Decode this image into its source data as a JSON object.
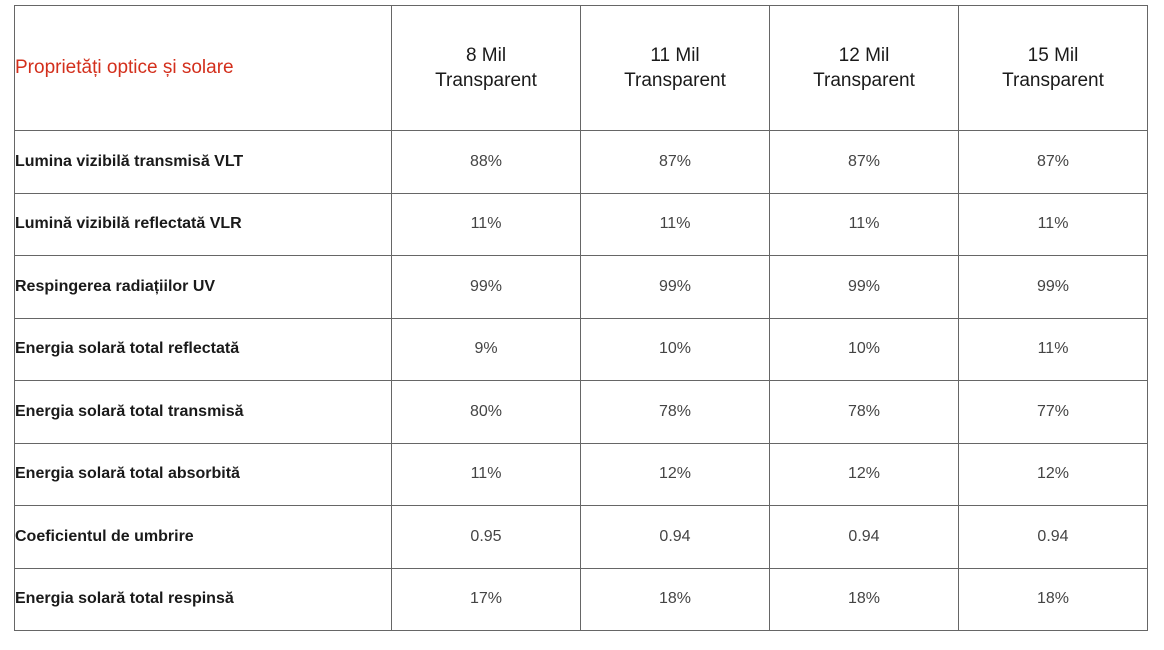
{
  "table": {
    "title": "Proprietăți optice și solare",
    "columns": [
      {
        "line1": "8 Mil",
        "line2": "Transparent"
      },
      {
        "line1": "11 Mil",
        "line2": "Transparent"
      },
      {
        "line1": "12 Mil",
        "line2": "Transparent"
      },
      {
        "line1": "15 Mil",
        "line2": "Transparent"
      }
    ],
    "rows": [
      {
        "label": "Lumina vizibilă transmisă VLT",
        "values": [
          "88%",
          "87%",
          "87%",
          "87%"
        ]
      },
      {
        "label": "Lumină vizibilă reflectată VLR",
        "values": [
          "11%",
          "11%",
          "11%",
          "11%"
        ]
      },
      {
        "label": "Respingerea radiațiilor UV",
        "values": [
          "99%",
          "99%",
          "99%",
          "99%"
        ]
      },
      {
        "label": "Energia solară total reflectată",
        "values": [
          "9%",
          "10%",
          "10%",
          "11%"
        ]
      },
      {
        "label": "Energia solară total transmisă",
        "values": [
          "80%",
          "78%",
          "78%",
          "77%"
        ]
      },
      {
        "label": "Energia solară total absorbită",
        "values": [
          "11%",
          "12%",
          "12%",
          "12%"
        ]
      },
      {
        "label": "Coeficientul de umbrire",
        "values": [
          "0.95",
          "0.94",
          "0.94",
          "0.94"
        ]
      },
      {
        "label": "Energia solară total respinsă",
        "values": [
          "17%",
          "18%",
          "18%",
          "18%"
        ]
      }
    ]
  }
}
